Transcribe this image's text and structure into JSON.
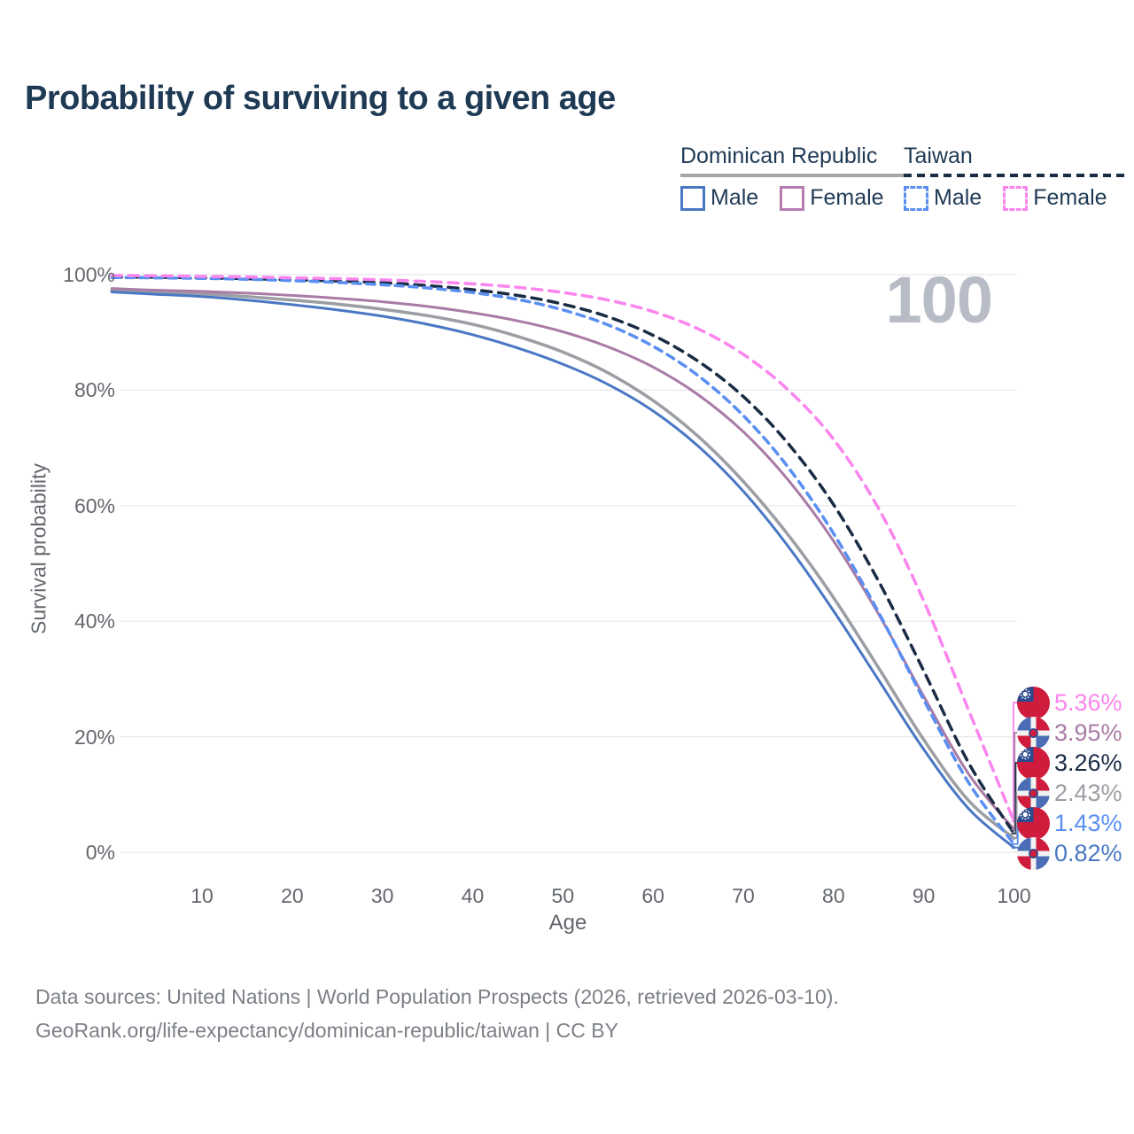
{
  "title": "Probability of surviving to a given age",
  "legend": {
    "groups": [
      {
        "label": "Dominican Republic",
        "line_style": "solid",
        "line_color": "#a6a6a6",
        "items": [
          {
            "label": "Male",
            "swatch_color": "#4a77c4",
            "dashed": false
          },
          {
            "label": "Female",
            "swatch_color": "#b57cb0",
            "dashed": false
          }
        ]
      },
      {
        "label": "Taiwan",
        "line_style": "dashed",
        "line_color": "#1a2c44",
        "items": [
          {
            "label": "Male",
            "swatch_color": "#5a8ff2",
            "dashed": true
          },
          {
            "label": "Female",
            "swatch_color": "#fa85ee",
            "dashed": true
          }
        ]
      }
    ]
  },
  "chart_data": {
    "type": "line",
    "title": "Probability of surviving to a given age",
    "xlabel": "Age",
    "ylabel": "Survival probability",
    "watermark_age": "100",
    "xlim": [
      0,
      110
    ],
    "ylim": [
      0,
      100
    ],
    "grid": "horizontal",
    "legend_position": "top-right",
    "x_ticks": [
      10,
      20,
      30,
      40,
      50,
      60,
      70,
      80,
      90,
      100
    ],
    "y_ticks": [
      {
        "value": 0,
        "label": "0%"
      },
      {
        "value": 20,
        "label": "20%"
      },
      {
        "value": 40,
        "label": "40%"
      },
      {
        "value": 60,
        "label": "60%"
      },
      {
        "value": 80,
        "label": "80%"
      },
      {
        "value": 100,
        "label": "100%"
      }
    ],
    "ages": [
      0,
      5,
      10,
      15,
      20,
      25,
      30,
      35,
      40,
      45,
      50,
      55,
      60,
      65,
      70,
      75,
      80,
      85,
      90,
      95,
      100
    ],
    "series": [
      {
        "name": "Dominican Republic Both sexes",
        "country": "Dominican Republic",
        "sex": "both",
        "color": "#9b9ea3",
        "dash": null,
        "width": 3.5,
        "values": [
          97.3,
          97.0,
          96.7,
          96.2,
          95.6,
          94.9,
          94.0,
          92.9,
          91.4,
          89.3,
          86.6,
          83.0,
          78.2,
          72.0,
          64.2,
          54.9,
          44.1,
          31.9,
          19.5,
          8.9,
          2.43
        ]
      },
      {
        "name": "Dominican Republic Female",
        "country": "Dominican Republic",
        "sex": "female",
        "color": "#a97ba6",
        "dash": null,
        "width": 3,
        "values": [
          97.6,
          97.3,
          97.1,
          96.8,
          96.4,
          95.9,
          95.3,
          94.5,
          93.4,
          92.0,
          90.1,
          87.5,
          84.0,
          79.2,
          72.8,
          64.4,
          53.9,
          41.2,
          27.0,
          13.5,
          3.95
        ]
      },
      {
        "name": "Dominican Republic Male",
        "country": "Dominican Republic",
        "sex": "male",
        "color": "#4a77c4",
        "dash": null,
        "width": 3,
        "values": [
          97.0,
          96.6,
          96.2,
          95.6,
          94.8,
          93.9,
          92.8,
          91.4,
          89.6,
          87.3,
          84.5,
          81.0,
          76.4,
          70.3,
          62.5,
          52.9,
          41.8,
          29.8,
          17.8,
          7.5,
          0.82
        ]
      },
      {
        "name": "Taiwan Both sexes",
        "country": "Taiwan",
        "sex": "both",
        "color": "#1a2c44",
        "dash": "11 8",
        "width": 3.5,
        "values": [
          99.6,
          99.55,
          99.45,
          99.3,
          99.1,
          98.9,
          98.6,
          98.1,
          97.4,
          96.4,
          94.9,
          92.7,
          89.5,
          85.0,
          78.9,
          70.7,
          60.2,
          46.9,
          31.4,
          15.4,
          3.26
        ]
      },
      {
        "name": "Taiwan Male",
        "country": "Taiwan",
        "sex": "male",
        "color": "#5a8ff2",
        "dash": "9 7",
        "width": 3.5,
        "values": [
          99.5,
          99.45,
          99.35,
          99.2,
          98.95,
          98.65,
          98.25,
          97.7,
          96.9,
          95.7,
          93.9,
          91.3,
          87.6,
          82.5,
          75.6,
          66.6,
          55.2,
          41.5,
          26.4,
          12.0,
          1.43
        ]
      },
      {
        "name": "Taiwan Female",
        "country": "Taiwan",
        "sex": "female",
        "color": "#fa85ee",
        "dash": "11 8",
        "width": 3.5,
        "values": [
          99.85,
          99.8,
          99.7,
          99.6,
          99.45,
          99.3,
          99.1,
          98.8,
          98.4,
          97.8,
          96.9,
          95.6,
          93.6,
          90.6,
          86.2,
          80.0,
          71.5,
          59.5,
          43.5,
          24.5,
          5.36
        ]
      }
    ],
    "end_labels": [
      {
        "text": "5.36%",
        "value": 5.36,
        "series": "Taiwan Female",
        "flag": "taiwan",
        "color": "#fa85ee"
      },
      {
        "text": "3.95%",
        "value": 3.95,
        "series": "Dominican Republic Female",
        "flag": "dominican-republic",
        "color": "#a97ba6"
      },
      {
        "text": "3.26%",
        "value": 3.26,
        "series": "Taiwan Both sexes",
        "flag": "taiwan",
        "color": "#1a2c44"
      },
      {
        "text": "2.43%",
        "value": 2.43,
        "series": "Dominican Republic Both sexes",
        "flag": "dominican-republic",
        "color": "#9b9ea3"
      },
      {
        "text": "1.43%",
        "value": 1.43,
        "series": "Taiwan Male",
        "flag": "taiwan",
        "color": "#5a8ff2"
      },
      {
        "text": "0.82%",
        "value": 0.82,
        "series": "Dominican Republic Male",
        "flag": "dominican-republic",
        "color": "#4a77c4"
      }
    ]
  },
  "footer": {
    "line1": "Data sources: United Nations | World Population Prospects (2026, retrieved 2026-03-10).",
    "line2": "GeoRank.org/life-expectancy/dominican-republic/taiwan | CC BY"
  }
}
